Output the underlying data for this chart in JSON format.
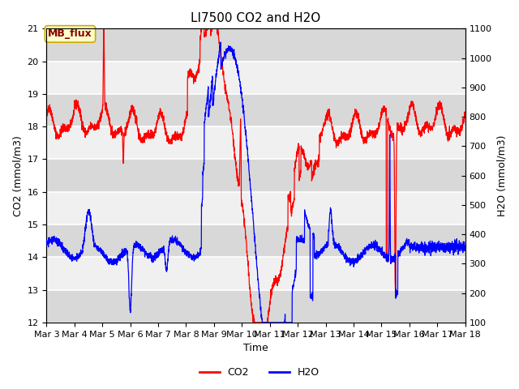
{
  "title": "LI7500 CO2 and H2O",
  "xlabel": "Time",
  "ylabel_left": "CO2 (mmol/m3)",
  "ylabel_right": "H2O (mmol/m3)",
  "xlim_days": [
    3,
    18
  ],
  "ylim_left": [
    12.0,
    21.0
  ],
  "ylim_right": [
    100,
    1100
  ],
  "yticks_left": [
    12.0,
    13.0,
    14.0,
    15.0,
    16.0,
    17.0,
    18.0,
    19.0,
    20.0,
    21.0
  ],
  "yticks_right": [
    100,
    200,
    300,
    400,
    500,
    600,
    700,
    800,
    900,
    1000,
    1100
  ],
  "xtick_labels": [
    "Mar 3",
    "Mar 4",
    "Mar 5",
    "Mar 6",
    "Mar 7",
    "Mar 8",
    "Mar 9",
    "Mar 10",
    "Mar 11",
    "Mar 12",
    "Mar 13",
    "Mar 14",
    "Mar 15",
    "Mar 16",
    "Mar 17",
    "Mar 18"
  ],
  "xtick_positions": [
    3,
    4,
    5,
    6,
    7,
    8,
    9,
    10,
    11,
    12,
    13,
    14,
    15,
    16,
    17,
    18
  ],
  "color_co2": "#ff0000",
  "color_h2o": "#0000ff",
  "legend_label_co2": "CO2",
  "legend_label_h2o": "H2O",
  "annotation_text": "MB_flux",
  "annotation_color": "#880000",
  "annotation_bg": "#ffffcc",
  "annotation_edge": "#ccaa00",
  "bg_color": "#ffffff",
  "plot_bg_light": "#f0f0f0",
  "plot_bg_dark": "#d8d8d8",
  "grid_color": "#ffffff",
  "title_fontsize": 11,
  "axis_fontsize": 9,
  "tick_fontsize": 8,
  "legend_fontsize": 9,
  "line_width": 0.9
}
